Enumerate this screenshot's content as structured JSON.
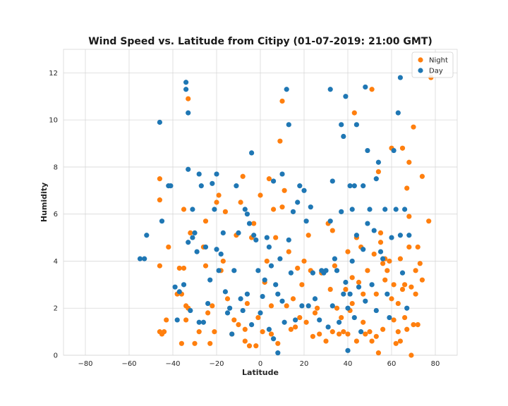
{
  "chart_data": {
    "type": "scatter",
    "title": "Wind Speed vs. Latitude from Citipy (01-07-2019: 21:00 GMT)",
    "xlabel": "Latitude",
    "ylabel": "Humidity",
    "xlim": [
      -90,
      90
    ],
    "ylim": [
      0,
      13
    ],
    "xticks": [
      -80,
      -60,
      -40,
      -20,
      0,
      20,
      40,
      60,
      80
    ],
    "yticks": [
      0,
      2,
      4,
      6,
      8,
      10,
      12
    ],
    "grid": true,
    "legend_position": "top-right",
    "series": [
      {
        "name": "Night",
        "color": "#ff7f0e",
        "points": [
          [
            -46,
            7.5
          ],
          [
            -46,
            6.6
          ],
          [
            -46,
            3.8
          ],
          [
            -46,
            1.0
          ],
          [
            -45,
            0.9
          ],
          [
            -44,
            1.0
          ],
          [
            -43,
            1.5
          ],
          [
            -42,
            4.6
          ],
          [
            -38,
            2.6
          ],
          [
            -37,
            3.7
          ],
          [
            -36,
            2.6
          ],
          [
            -36,
            0.5
          ],
          [
            -35,
            6.2
          ],
          [
            -35,
            3.7
          ],
          [
            -34,
            1.5
          ],
          [
            -34,
            2.1
          ],
          [
            -33,
            10.9
          ],
          [
            -33,
            2.0
          ],
          [
            -32,
            5.2
          ],
          [
            -30,
            0.5
          ],
          [
            -28,
            1.0
          ],
          [
            -26,
            4.6
          ],
          [
            -25,
            3.8
          ],
          [
            -25,
            5.7
          ],
          [
            -24,
            1.8
          ],
          [
            -23,
            0.5
          ],
          [
            -22,
            2.1
          ],
          [
            -21,
            1.0
          ],
          [
            -20,
            6.5
          ],
          [
            -19,
            6.8
          ],
          [
            -18,
            3.6
          ],
          [
            -17,
            4.0
          ],
          [
            -16,
            6.1
          ],
          [
            -15,
            2.4
          ],
          [
            -13,
            0.9
          ],
          [
            -12,
            1.5
          ],
          [
            -11,
            5.1
          ],
          [
            -10,
            1.3
          ],
          [
            -9,
            6.5
          ],
          [
            -8,
            7.6
          ],
          [
            -7,
            0.6
          ],
          [
            -7,
            1.1
          ],
          [
            -6,
            2.2
          ],
          [
            -5,
            0.4
          ],
          [
            -4,
            5.0
          ],
          [
            -3,
            5.6
          ],
          [
            -2,
            0.4
          ],
          [
            -1,
            1.6
          ],
          [
            0,
            6.8
          ],
          [
            1,
            1.0
          ],
          [
            2,
            3.1
          ],
          [
            3,
            4.0
          ],
          [
            4,
            7.5
          ],
          [
            5,
            2.1
          ],
          [
            5,
            0.9
          ],
          [
            6,
            6.2
          ],
          [
            7,
            5.0
          ],
          [
            8,
            0.5
          ],
          [
            9,
            9.1
          ],
          [
            10,
            10.8
          ],
          [
            10,
            6.3
          ],
          [
            11,
            7.0
          ],
          [
            12,
            2.1
          ],
          [
            13,
            4.4
          ],
          [
            14,
            1.1
          ],
          [
            15,
            2.4
          ],
          [
            16,
            1.2
          ],
          [
            17,
            3.7
          ],
          [
            18,
            1.6
          ],
          [
            19,
            3.0
          ],
          [
            20,
            4.0
          ],
          [
            21,
            1.4
          ],
          [
            22,
            5.1
          ],
          [
            23,
            3.6
          ],
          [
            24,
            0.8
          ],
          [
            25,
            1.8
          ],
          [
            26,
            2.0
          ],
          [
            27,
            0.9
          ],
          [
            28,
            3.5
          ],
          [
            30,
            0.6
          ],
          [
            31,
            5.6
          ],
          [
            32,
            2.8
          ],
          [
            33,
            1.0
          ],
          [
            33,
            5.3
          ],
          [
            34,
            3.8
          ],
          [
            35,
            2.0
          ],
          [
            36,
            0.9
          ],
          [
            37,
            1.6
          ],
          [
            38,
            1.0
          ],
          [
            39,
            2.8
          ],
          [
            40,
            4.4
          ],
          [
            40,
            0.9
          ],
          [
            41,
            1.9
          ],
          [
            42,
            3.3
          ],
          [
            42,
            2.2
          ],
          [
            43,
            10.3
          ],
          [
            44,
            0.6
          ],
          [
            44,
            5.0
          ],
          [
            45,
            3.1
          ],
          [
            46,
            4.6
          ],
          [
            47,
            1.4
          ],
          [
            47,
            2.6
          ],
          [
            48,
            0.9
          ],
          [
            49,
            3.6
          ],
          [
            50,
            1.0
          ],
          [
            51,
            11.3
          ],
          [
            51,
            0.6
          ],
          [
            52,
            4.3
          ],
          [
            53,
            2.6
          ],
          [
            53,
            0.8
          ],
          [
            54,
            7.8
          ],
          [
            54,
            0.1
          ],
          [
            55,
            5.2
          ],
          [
            55,
            4.8
          ],
          [
            56,
            3.9
          ],
          [
            56,
            1.1
          ],
          [
            57,
            4.1
          ],
          [
            57,
            3.2
          ],
          [
            58,
            3.6
          ],
          [
            59,
            4.0
          ],
          [
            60,
            8.8
          ],
          [
            60,
            2.4
          ],
          [
            61,
            3.0
          ],
          [
            61,
            1.5
          ],
          [
            62,
            0.5
          ],
          [
            63,
            2.2
          ],
          [
            63,
            1.0
          ],
          [
            64,
            4.1
          ],
          [
            64,
            0.6
          ],
          [
            65,
            8.8
          ],
          [
            65,
            2.8
          ],
          [
            66,
            1.6
          ],
          [
            66,
            3.0
          ],
          [
            67,
            7.1
          ],
          [
            67,
            1.1
          ],
          [
            68,
            5.9
          ],
          [
            68,
            4.6
          ],
          [
            68,
            8.2
          ],
          [
            69,
            2.9
          ],
          [
            69,
            0.0
          ],
          [
            70,
            9.7
          ],
          [
            70,
            1.3
          ],
          [
            71,
            3.6
          ],
          [
            71,
            2.6
          ],
          [
            72,
            4.6
          ],
          [
            72,
            1.3
          ],
          [
            73,
            3.9
          ],
          [
            74,
            7.6
          ],
          [
            74,
            3.2
          ],
          [
            77,
            5.7
          ],
          [
            78,
            11.8
          ]
        ]
      },
      {
        "name": "Day",
        "color": "#1f77b4",
        "points": [
          [
            -55,
            4.1
          ],
          [
            -53,
            4.1
          ],
          [
            -52,
            5.1
          ],
          [
            -46,
            9.9
          ],
          [
            -45,
            5.7
          ],
          [
            -42,
            7.2
          ],
          [
            -41,
            7.2
          ],
          [
            -39,
            2.9
          ],
          [
            -38,
            1.5
          ],
          [
            -37,
            2.7
          ],
          [
            -35,
            3.0
          ],
          [
            -34,
            11.3
          ],
          [
            -34,
            11.6
          ],
          [
            -33,
            10.3
          ],
          [
            -33,
            7.9
          ],
          [
            -33,
            4.8
          ],
          [
            -32,
            1.9
          ],
          [
            -31,
            6.2
          ],
          [
            -31,
            5.0
          ],
          [
            -30,
            5.2
          ],
          [
            -29,
            4.4
          ],
          [
            -28,
            7.7
          ],
          [
            -28,
            1.4
          ],
          [
            -27,
            7.2
          ],
          [
            -26,
            1.4
          ],
          [
            -25,
            4.6
          ],
          [
            -24,
            2.2
          ],
          [
            -23,
            3.2
          ],
          [
            -22,
            7.3
          ],
          [
            -21,
            6.2
          ],
          [
            -20,
            7.7
          ],
          [
            -20,
            4.5
          ],
          [
            -19,
            3.6
          ],
          [
            -18,
            4.3
          ],
          [
            -17,
            5.2
          ],
          [
            -16,
            2.7
          ],
          [
            -15,
            1.8
          ],
          [
            -14,
            2.0
          ],
          [
            -13,
            0.9
          ],
          [
            -12,
            3.6
          ],
          [
            -11,
            7.2
          ],
          [
            -10,
            5.2
          ],
          [
            -9,
            2.4
          ],
          [
            -8,
            1.9
          ],
          [
            -7,
            6.2
          ],
          [
            -6,
            6.0
          ],
          [
            -6,
            2.6
          ],
          [
            -5,
            5.6
          ],
          [
            -4,
            8.6
          ],
          [
            -4,
            1.3
          ],
          [
            -3,
            5.1
          ],
          [
            -2,
            4.9
          ],
          [
            -1,
            3.6
          ],
          [
            0,
            1.8
          ],
          [
            1,
            2.5
          ],
          [
            2,
            3.2
          ],
          [
            3,
            5.0
          ],
          [
            4,
            4.6
          ],
          [
            4,
            1.1
          ],
          [
            5,
            3.8
          ],
          [
            6,
            7.4
          ],
          [
            6,
            0.7
          ],
          [
            7,
            3.0
          ],
          [
            8,
            2.6
          ],
          [
            8,
            0.1
          ],
          [
            9,
            4.1
          ],
          [
            10,
            7.7
          ],
          [
            10,
            2.3
          ],
          [
            11,
            1.4
          ],
          [
            12,
            11.3
          ],
          [
            13,
            9.8
          ],
          [
            13,
            4.9
          ],
          [
            14,
            3.5
          ],
          [
            15,
            6.1
          ],
          [
            16,
            1.5
          ],
          [
            17,
            6.5
          ],
          [
            18,
            7.2
          ],
          [
            19,
            2.1
          ],
          [
            20,
            7.0
          ],
          [
            21,
            5.7
          ],
          [
            22,
            2.1
          ],
          [
            23,
            6.3
          ],
          [
            24,
            3.5
          ],
          [
            25,
            2.4
          ],
          [
            27,
            1.5
          ],
          [
            28,
            3.6
          ],
          [
            29,
            3.5
          ],
          [
            30,
            3.6
          ],
          [
            31,
            1.2
          ],
          [
            32,
            11.3
          ],
          [
            32,
            5.7
          ],
          [
            33,
            7.4
          ],
          [
            33,
            2.1
          ],
          [
            34,
            4.1
          ],
          [
            35,
            3.6
          ],
          [
            36,
            1.4
          ],
          [
            37,
            9.8
          ],
          [
            37,
            6.1
          ],
          [
            38,
            9.3
          ],
          [
            38,
            2.6
          ],
          [
            39,
            11.0
          ],
          [
            39,
            3.1
          ],
          [
            40,
            2.0
          ],
          [
            40,
            0.2
          ],
          [
            41,
            7.2
          ],
          [
            41,
            2.6
          ],
          [
            42,
            6.2
          ],
          [
            42,
            4.0
          ],
          [
            43,
            7.2
          ],
          [
            43,
            1.6
          ],
          [
            44,
            9.8
          ],
          [
            44,
            5.1
          ],
          [
            45,
            2.9
          ],
          [
            46,
            1.0
          ],
          [
            47,
            7.2
          ],
          [
            47,
            4.5
          ],
          [
            48,
            11.4
          ],
          [
            48,
            2.3
          ],
          [
            49,
            8.7
          ],
          [
            49,
            5.6
          ],
          [
            50,
            6.2
          ],
          [
            51,
            3.0
          ],
          [
            52,
            5.3
          ],
          [
            53,
            7.5
          ],
          [
            53,
            1.9
          ],
          [
            54,
            8.2
          ],
          [
            55,
            4.4
          ],
          [
            56,
            4.1
          ],
          [
            57,
            6.2
          ],
          [
            58,
            2.6
          ],
          [
            59,
            1.6
          ],
          [
            60,
            5.0
          ],
          [
            61,
            8.7
          ],
          [
            62,
            6.2
          ],
          [
            63,
            10.3
          ],
          [
            64,
            11.8
          ],
          [
            64,
            5.1
          ],
          [
            65,
            3.5
          ],
          [
            66,
            6.2
          ],
          [
            67,
            2.0
          ],
          [
            68,
            5.1
          ]
        ]
      }
    ]
  }
}
